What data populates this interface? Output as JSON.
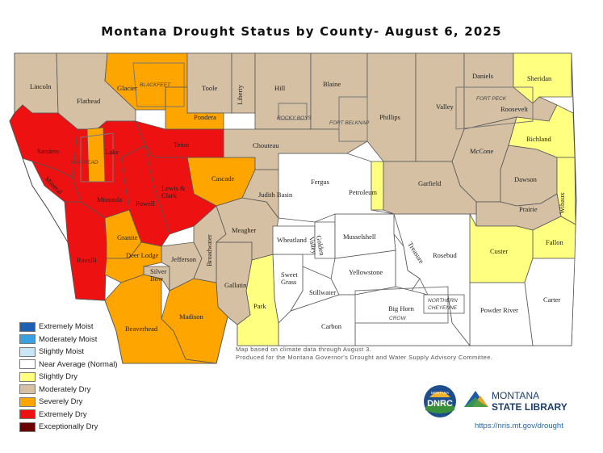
{
  "title": "Montana Drought Status by County-  August 6, 2025",
  "colors": {
    "extremely_moist": "#1f5fb4",
    "moderately_moist": "#3aa0e0",
    "slightly_moist": "#c9e6f7",
    "near_average": "#ffffff",
    "slightly_dry": "#ffff80",
    "moderately_dry": "#d5c0a4",
    "severely_dry": "#ffa500",
    "extremely_dry": "#ee1111",
    "exceptionally_dry": "#6b0000"
  },
  "legend": [
    {
      "label": "Extremely Moist",
      "color": "#1f5fb4"
    },
    {
      "label": "Moderately Moist",
      "color": "#3aa0e0"
    },
    {
      "label": "Slightly Moist",
      "color": "#c9e6f7"
    },
    {
      "label": "Near Average (Normal)",
      "color": "#ffffff"
    },
    {
      "label": "Slightly Dry",
      "color": "#ffff80"
    },
    {
      "label": "Moderately Dry",
      "color": "#d5c0a4"
    },
    {
      "label": "Severely Dry",
      "color": "#ffa500"
    },
    {
      "label": "Extremely Dry",
      "color": "#ee1111"
    },
    {
      "label": "Exceptionally Dry",
      "color": "#6b0000"
    }
  ],
  "counties": {
    "lincoln": "Lincoln",
    "flathead": "Flathead",
    "glacier": "Glacier",
    "toole": "Toole",
    "liberty": "Liberty",
    "hill": "Hill",
    "blaine": "Blaine",
    "phillips": "Phillips",
    "valley": "Valley",
    "daniels": "Daniels",
    "sheridan": "Sheridan",
    "roosevelt": "Roosevelt",
    "richland": "Richland",
    "mccone": "McCone",
    "dawson": "Dawson",
    "wibaux": "Wibaux",
    "prairie": "Prairie",
    "fallon": "Fallon",
    "custer": "Custer",
    "carter": "Carter",
    "powder_river": "Powder River",
    "rosebud": "Rosebud",
    "treasure": "Treasure",
    "big_horn": "Big Horn",
    "yellowstone": "Yellowstone",
    "carbon": "Carbon",
    "stillwater": "Stillwater",
    "sweet_grass": "Sweet\nGrass",
    "park": "Park",
    "gallatin": "Gallatin",
    "madison": "Madison",
    "beaverhead": "Beaverhead",
    "silver_bow": "Silver\nBow",
    "jefferson": "Jefferson",
    "broadwater": "Broadwater",
    "meagher": "Meagher",
    "wheatland": "Wheatland",
    "golden_valley": "Golden\nValley",
    "musselshell": "Musselshell",
    "fergus": "Fergus",
    "petroleum": "Petroleum",
    "garfield": "Garfield",
    "judith_basin": "Judith Basin",
    "cascade": "Cascade",
    "chouteau": "Chouteau",
    "pondera": "Pondera",
    "teton": "Teton",
    "lewis_clark": "Lewis &\nClark",
    "powell": "Powell",
    "missoula": "Missoula",
    "mineral": "Mineral",
    "sanders": "Sanders",
    "lake": "Lake",
    "ravalli": "Ravalli",
    "granite": "Granite",
    "deer_lodge": "Deer Lodge"
  },
  "reservations": {
    "blackfeet": "BLACKFEET",
    "rocky_boys": "ROCKY BOYS",
    "fort_belknap": "FORT BELKNAP",
    "fort_peck": "FORT PECK",
    "flathead": "FLATHEAD",
    "crow": "CROW",
    "northern_cheyenne": "NORTHERN\nCHEYENNE"
  },
  "county_status": {
    "lincoln": "moderately_dry",
    "flathead": "moderately_dry",
    "glacier": "severely_dry",
    "toole": "moderately_dry",
    "liberty": "moderately_dry",
    "hill": "moderately_dry",
    "blaine": "moderately_dry",
    "phillips": "moderately_dry",
    "valley": "moderately_dry",
    "daniels": "moderately_dry",
    "sheridan": "slightly_dry",
    "roosevelt": "moderately_dry",
    "richland": "slightly_dry",
    "mccone": "moderately_dry",
    "dawson": "moderately_dry",
    "wibaux": "slightly_dry",
    "prairie": "moderately_dry",
    "fallon": "slightly_dry",
    "custer": "slightly_dry",
    "carter": "near_average",
    "powder_river": "near_average",
    "rosebud": "near_average",
    "treasure": "near_average",
    "big_horn": "near_average",
    "yellowstone": "near_average",
    "carbon": "near_average",
    "stillwater": "near_average",
    "sweet_grass": "near_average",
    "park": "slightly_dry",
    "gallatin": "moderately_dry",
    "madison": "severely_dry",
    "beaverhead": "severely_dry",
    "silver_bow": "moderately_dry",
    "jefferson": "moderately_dry",
    "broadwater": "moderately_dry",
    "meagher": "moderately_dry",
    "wheatland": "near_average",
    "golden_valley": "near_average",
    "musselshell": "near_average",
    "fergus": "near_average",
    "petroleum": "slightly_dry",
    "garfield": "moderately_dry",
    "judith_basin": "moderately_dry",
    "cascade": "severely_dry",
    "chouteau": "moderately_dry",
    "pondera": "severely_dry",
    "teton": "extremely_dry",
    "lewis_clark": "extremely_dry",
    "powell": "extremely_dry",
    "missoula": "extremely_dry",
    "mineral": "extremely_dry",
    "sanders": "extremely_dry",
    "lake": "severely_dry",
    "ravalli": "extremely_dry",
    "granite": "severely_dry",
    "deer_lodge": "severely_dry"
  },
  "note": {
    "line1": "Map based on climate data through August 3.",
    "line2": "Produced for the Montana Governor's Drought and Water Supply Advisory Committee."
  },
  "logos": {
    "dnrc_top": "MONTANA",
    "dnrc": "DNRC",
    "msl_line1": "MONTANA",
    "msl_line2": "STATE LIBRARY"
  },
  "url": "https://nris.mt.gov/drought"
}
